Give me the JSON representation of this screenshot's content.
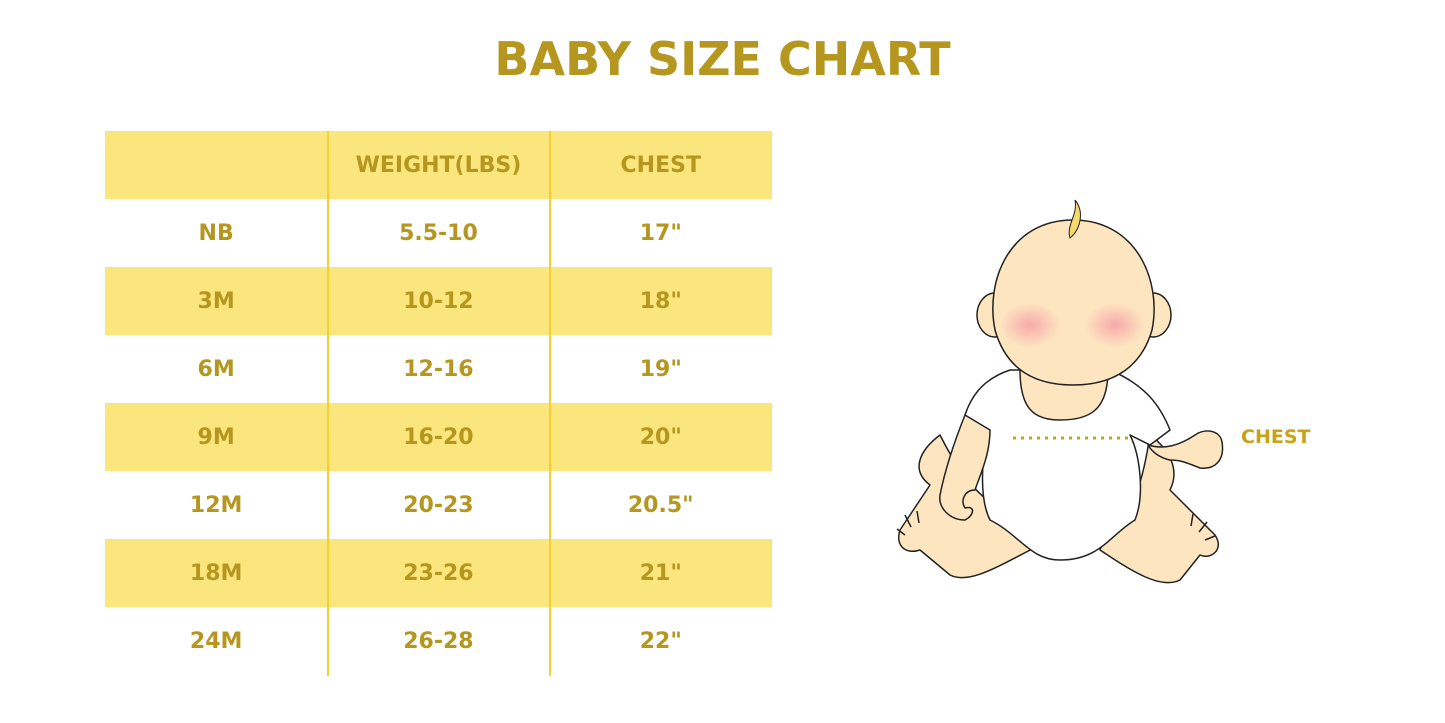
{
  "title": "BABY SIZE CHART",
  "colors": {
    "accent": "#b5961e",
    "row_shade": "#fbe57d",
    "divider": "#f5d030"
  },
  "table": {
    "headers": [
      "",
      "WEIGHT(LBS)",
      "CHEST"
    ],
    "rows": [
      [
        "NB",
        "5.5-10",
        "17\""
      ],
      [
        "3M",
        "10-12",
        "18\""
      ],
      [
        "6M",
        "12-16",
        "19\""
      ],
      [
        "9M",
        "16-20",
        "20\""
      ],
      [
        "12M",
        "20-23",
        "20.5\""
      ],
      [
        "18M",
        "23-26",
        "21\""
      ],
      [
        "24M",
        "26-28",
        "22\""
      ]
    ]
  },
  "illustration": {
    "icon": "baby-sitting-illustration",
    "chest_label": "CHEST"
  }
}
